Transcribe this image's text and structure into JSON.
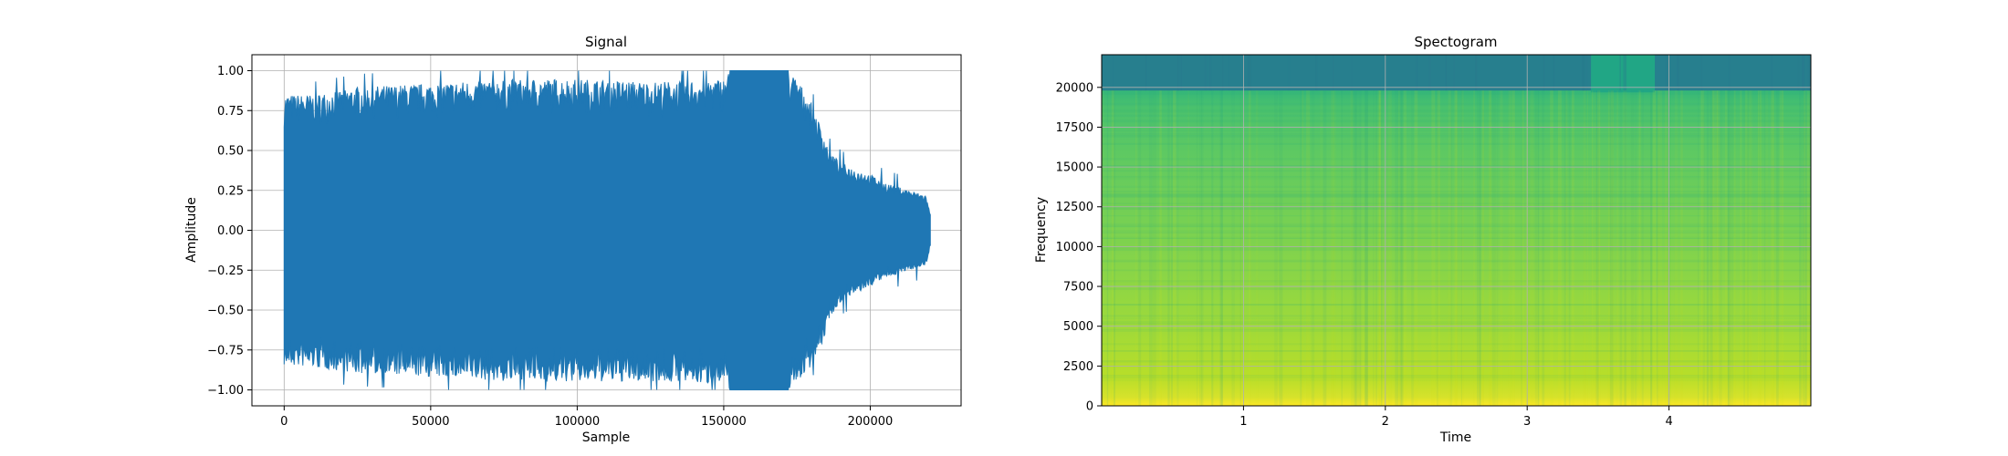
{
  "chart_data": [
    {
      "type": "line",
      "title": "Signal",
      "xlabel": "Sample",
      "ylabel": "Amplitude",
      "xlim": [
        -11000,
        231000
      ],
      "ylim": [
        -1.1,
        1.1
      ],
      "xticks": [
        0,
        50000,
        100000,
        150000,
        200000
      ],
      "xtick_labels": [
        "0",
        "50000",
        "100000",
        "150000",
        "200000"
      ],
      "yticks": [
        -1.0,
        -0.75,
        -0.5,
        -0.25,
        0.0,
        0.25,
        0.5,
        0.75,
        1.0
      ],
      "ytick_labels": [
        "−1.00",
        "−0.75",
        "−0.50",
        "−0.25",
        "0.00",
        "0.25",
        "0.50",
        "0.75",
        "1.00"
      ],
      "grid": true,
      "series": [
        {
          "color": "#1f77b4",
          "envelope": {
            "sample": [
              0,
              10000,
              25000,
              50000,
              75000,
              100000,
              125000,
              150000,
              152000,
              172000,
              175000,
              180000,
              184000,
              186000,
              190000,
              195000,
              200000,
              205000,
              210000,
              215000,
              219000,
              220500
            ],
            "max": [
              0.85,
              0.85,
              0.9,
              0.92,
              0.95,
              0.95,
              0.93,
              0.95,
              1.0,
              1.0,
              0.95,
              0.8,
              0.6,
              0.5,
              0.42,
              0.38,
              0.35,
              0.3,
              0.27,
              0.24,
              0.22,
              0.1
            ],
            "min": [
              -0.85,
              -0.86,
              -0.9,
              -0.92,
              -0.95,
              -0.95,
              -0.95,
              -0.97,
              -1.0,
              -1.0,
              -0.95,
              -0.85,
              -0.7,
              -0.55,
              -0.45,
              -0.4,
              -0.35,
              -0.3,
              -0.27,
              -0.24,
              -0.22,
              -0.1
            ]
          }
        }
      ]
    },
    {
      "type": "heatmap",
      "title": "Spectogram",
      "xlabel": "Time",
      "ylabel": "Frequency",
      "xlim": [
        0,
        5.0
      ],
      "ylim": [
        0,
        22050
      ],
      "xticks": [
        1,
        2,
        3,
        4
      ],
      "xtick_labels": [
        "1",
        "2",
        "3",
        "4"
      ],
      "yticks": [
        0,
        2500,
        5000,
        7500,
        10000,
        12500,
        15000,
        17500,
        20000
      ],
      "ytick_labels": [
        "0",
        "2500",
        "5000",
        "7500",
        "10000",
        "12500",
        "15000",
        "17500",
        "20000"
      ],
      "grid": true,
      "colormap": "viridis",
      "cutoff_frequency": 19800,
      "bright_band_time": [
        3.45,
        3.9
      ]
    }
  ]
}
